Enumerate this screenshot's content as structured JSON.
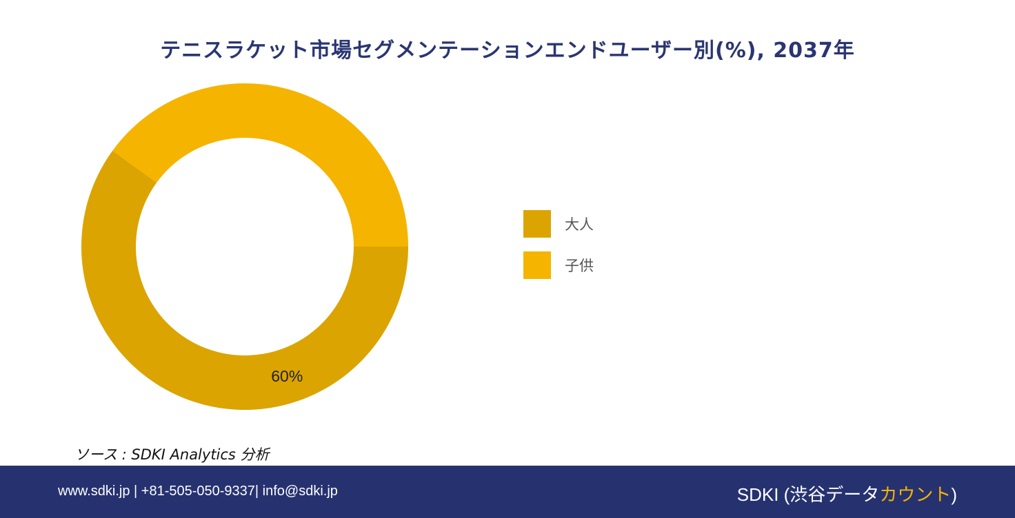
{
  "title": "テニスラケット市場セグメンテーションエンドユーザー別(%), 2037年",
  "chart_data": {
    "type": "pie",
    "subtype": "donut",
    "categories": [
      "大人",
      "子供"
    ],
    "values": [
      60,
      40
    ],
    "colors": [
      "#dba400",
      "#f5b400"
    ],
    "data_labels": [
      "60%",
      ""
    ],
    "legend_position": "right"
  },
  "source": "ソース : SDKI Analytics 分析",
  "footer": {
    "contact": "www.sdki.jp | +81-505-050-9337| info@sdki.jp",
    "brand_prefix": "SDKI (渋谷データ",
    "brand_accent": "カウント",
    "brand_suffix": ")"
  }
}
